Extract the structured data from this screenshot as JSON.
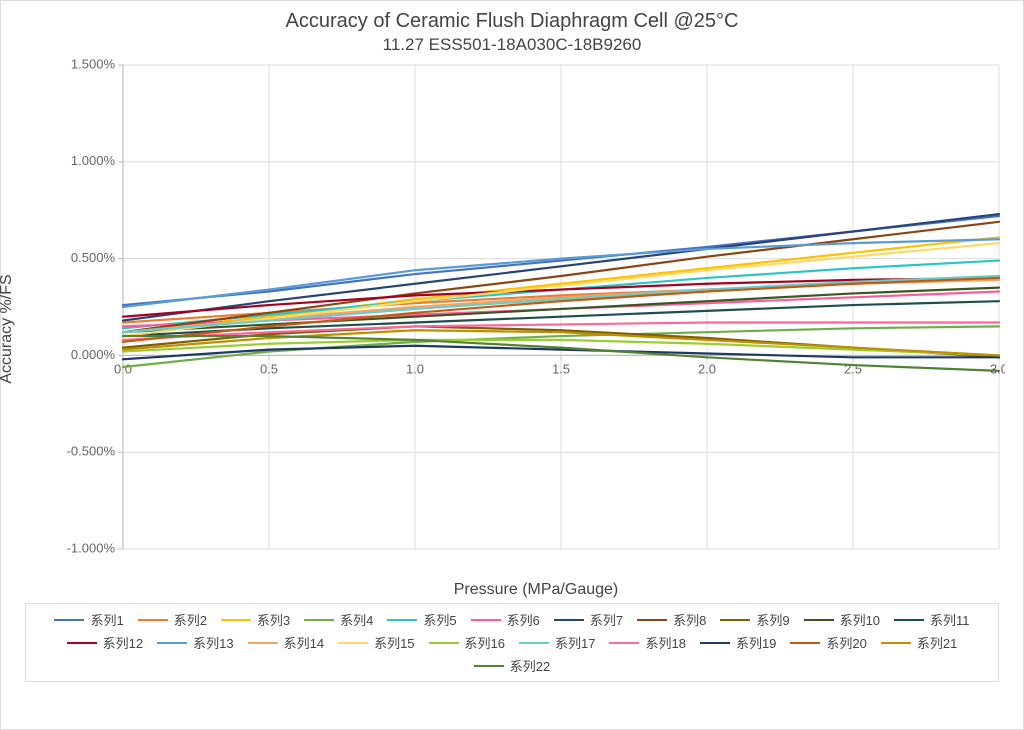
{
  "chart": {
    "type": "line",
    "title": "Accuracy of Ceramic Flush Diaphragm Cell  @25°C",
    "subtitle": "11.27 ESS501-18A030C-18B9260",
    "xlabel": "Pressure (MPa/Gauge)",
    "ylabel": "Accuracy %/FS",
    "title_fontsize": 20,
    "subtitle_fontsize": 17,
    "axis_label_fontsize": 16,
    "tick_fontsize": 13,
    "background_color": "#ffffff",
    "border_color": "#dcdcdc",
    "grid_color": "#dcdcdc",
    "axis_color": "#bfbfbf",
    "tick_label_color": "#666666",
    "text_color": "#444444",
    "line_width": 2.2,
    "xlim": [
      0.0,
      3.0
    ],
    "ylim": [
      -1.0,
      1.5
    ],
    "xticks": [
      0.0,
      0.5,
      1.0,
      1.5,
      2.0,
      2.5,
      3.0
    ],
    "xtick_labels": [
      "0.0",
      "0.5",
      "1.0",
      "1.5",
      "2.0",
      "2.5",
      "3.0"
    ],
    "yticks": [
      -1.0,
      -0.5,
      0.0,
      0.5,
      1.0,
      1.5
    ],
    "ytick_labels": [
      "-1.000%",
      "-0.500%",
      "0.000%",
      "0.500%",
      "1.000%",
      "1.500%"
    ],
    "ytick_format": "percent_3dp",
    "grid_x": true,
    "grid_y": true,
    "legend_position": "bottom",
    "legend_columns": 8,
    "legend_border_color": "#dcdcdc",
    "x_values": [
      0.0,
      0.5,
      1.0,
      1.5,
      2.0,
      2.5,
      3.0
    ],
    "series": [
      {
        "label": "系列1",
        "color": "#4472c4",
        "y": [
          0.26,
          0.33,
          0.42,
          0.49,
          0.56,
          0.64,
          0.72
        ]
      },
      {
        "label": "系列2",
        "color": "#ed7d31",
        "y": [
          0.17,
          0.22,
          0.27,
          0.31,
          0.34,
          0.37,
          0.4
        ]
      },
      {
        "label": "系列3",
        "color": "#ffc000",
        "y": [
          0.12,
          0.2,
          0.29,
          0.37,
          0.45,
          0.53,
          0.61
        ]
      },
      {
        "label": "系列4",
        "color": "#70ad47",
        "y": [
          -0.06,
          0.02,
          0.07,
          0.1,
          0.12,
          0.14,
          0.15
        ]
      },
      {
        "label": "系列5",
        "color": "#2ec4c4",
        "y": [
          0.14,
          0.21,
          0.28,
          0.34,
          0.4,
          0.45,
          0.49
        ]
      },
      {
        "label": "系列6",
        "color": "#fd5c9c",
        "y": [
          0.15,
          0.18,
          0.21,
          0.24,
          0.27,
          0.3,
          0.33
        ]
      },
      {
        "label": "系列7",
        "color": "#264478",
        "y": [
          0.18,
          0.28,
          0.37,
          0.46,
          0.55,
          0.64,
          0.73
        ]
      },
      {
        "label": "系列8",
        "color": "#8b4513",
        "y": [
          0.12,
          0.22,
          0.32,
          0.41,
          0.51,
          0.6,
          0.69
        ]
      },
      {
        "label": "系列9",
        "color": "#7f6000",
        "y": [
          0.04,
          0.11,
          0.15,
          0.13,
          0.09,
          0.04,
          -0.01
        ]
      },
      {
        "label": "系列10",
        "color": "#385723",
        "y": [
          0.12,
          0.16,
          0.2,
          0.24,
          0.28,
          0.32,
          0.35
        ]
      },
      {
        "label": "系列11",
        "color": "#1f4e4e",
        "y": [
          0.1,
          0.14,
          0.17,
          0.2,
          0.23,
          0.26,
          0.28
        ]
      },
      {
        "label": "系列12",
        "color": "#a50021",
        "y": [
          0.2,
          0.26,
          0.31,
          0.34,
          0.37,
          0.39,
          0.4
        ]
      },
      {
        "label": "系列13",
        "color": "#5b9bd5",
        "y": [
          0.25,
          0.34,
          0.44,
          0.5,
          0.55,
          0.58,
          0.6
        ]
      },
      {
        "label": "系列14",
        "color": "#f4a460",
        "y": [
          0.12,
          0.19,
          0.25,
          0.3,
          0.34,
          0.37,
          0.39
        ]
      },
      {
        "label": "系列15",
        "color": "#ffd966",
        "y": [
          0.1,
          0.19,
          0.28,
          0.36,
          0.44,
          0.51,
          0.58
        ]
      },
      {
        "label": "系列16",
        "color": "#9acd32",
        "y": [
          0.02,
          0.06,
          0.08,
          0.08,
          0.06,
          0.03,
          0.0
        ]
      },
      {
        "label": "系列17",
        "color": "#66cccc",
        "y": [
          0.12,
          0.18,
          0.24,
          0.29,
          0.34,
          0.38,
          0.41
        ]
      },
      {
        "label": "系列18",
        "color": "#ff6699",
        "y": [
          0.08,
          0.12,
          0.15,
          0.16,
          0.17,
          0.17,
          0.17
        ]
      },
      {
        "label": "系列19",
        "color": "#1f3864",
        "y": [
          -0.02,
          0.03,
          0.05,
          0.03,
          0.01,
          -0.01,
          -0.01
        ]
      },
      {
        "label": "系列20",
        "color": "#c55a11",
        "y": [
          0.07,
          0.15,
          0.22,
          0.28,
          0.33,
          0.37,
          0.4
        ]
      },
      {
        "label": "系列21",
        "color": "#bf8f00",
        "y": [
          0.03,
          0.09,
          0.13,
          0.12,
          0.08,
          0.04,
          0.0
        ]
      },
      {
        "label": "系列22",
        "color": "#548235",
        "y": [
          0.1,
          0.1,
          0.08,
          0.04,
          -0.01,
          -0.05,
          -0.08
        ]
      }
    ]
  }
}
